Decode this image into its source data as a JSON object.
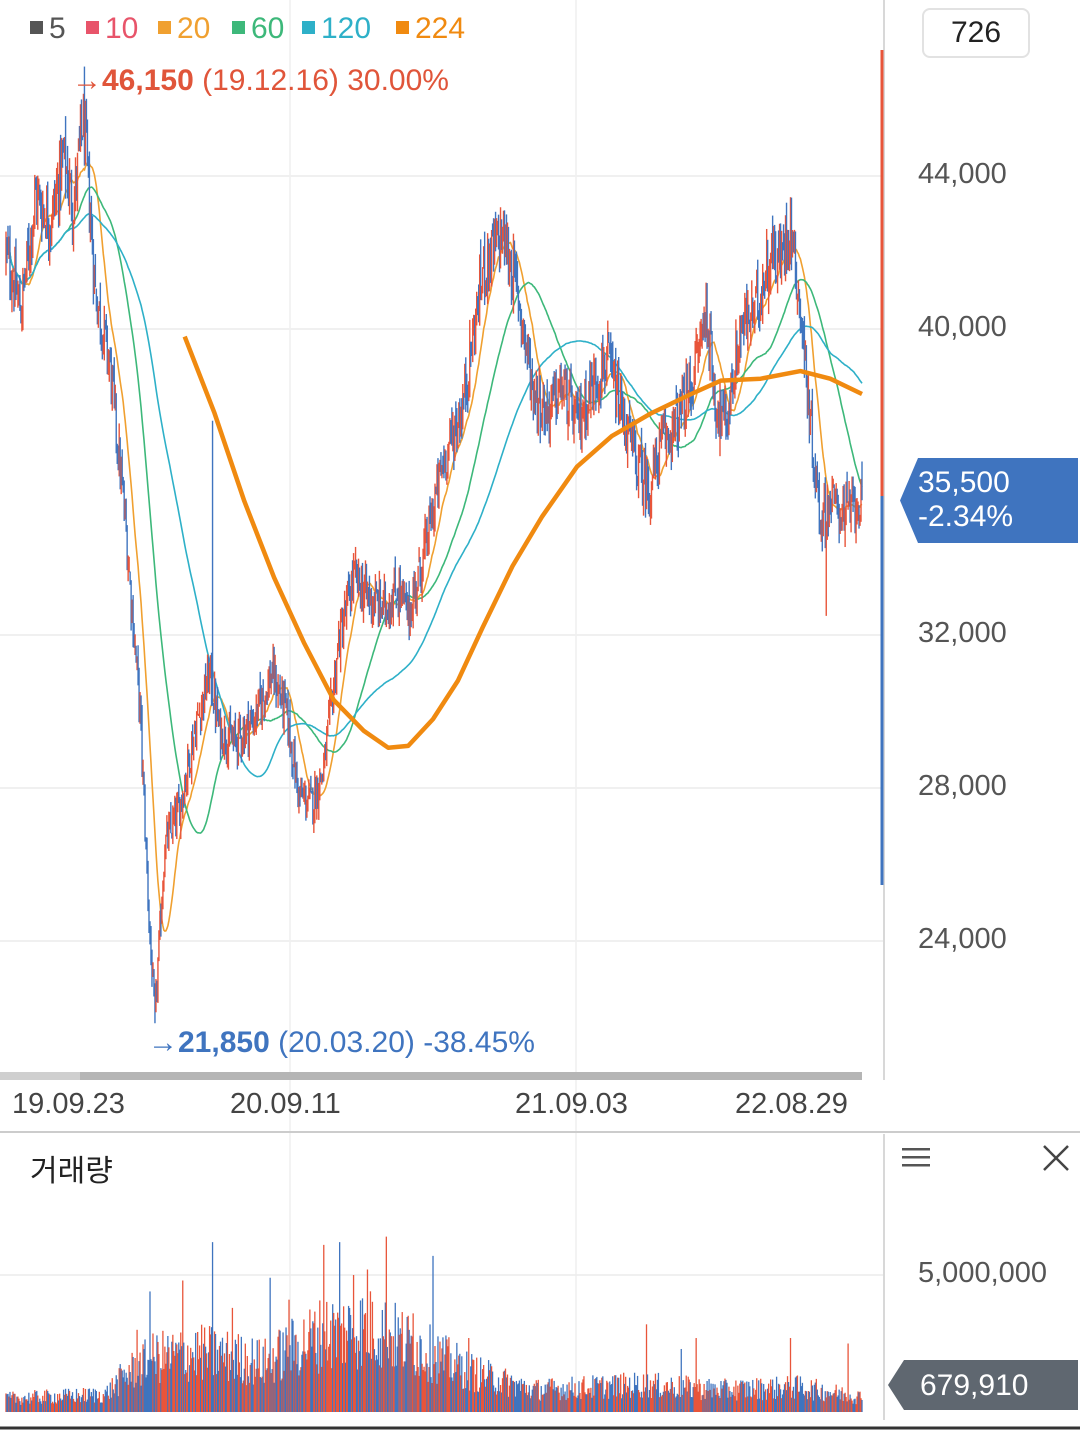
{
  "chart_data": [
    {
      "type": "candlestick",
      "legend": [
        {
          "name": "5",
          "color": "#555555"
        },
        {
          "name": "10",
          "color": "#e8546a"
        },
        {
          "name": "20",
          "color": "#f0a030"
        },
        {
          "name": "60",
          "color": "#3db87a"
        },
        {
          "name": "120",
          "color": "#2eb0c8"
        },
        {
          "name": "224",
          "color": "#f08a10"
        }
      ],
      "y_ticks": [
        "44,000",
        "40,000",
        "32,000",
        "28,000",
        "24,000"
      ],
      "y_tick_values": [
        44000,
        40000,
        32000,
        28000,
        24000
      ],
      "ylim": [
        20200,
        46150
      ],
      "x_ticks": [
        "19.09.23",
        "20.09.11",
        "21.09.03",
        "22.08.29"
      ],
      "counter": "726",
      "high_annotation": {
        "arrow": "→",
        "value": "46,150",
        "date": "(19.12.16)",
        "pct": "30.00%"
      },
      "low_annotation": {
        "arrow": "→",
        "value": "21,850",
        "date": "(20.03.20)",
        "pct": "-38.45%"
      },
      "current_price": "35,500",
      "current_change": "-2.34%",
      "up_color": "#e8553a",
      "down_color": "#3f74bf",
      "price_path": [
        {
          "i": 0,
          "v": 42000
        },
        {
          "i": 15,
          "v": 40500
        },
        {
          "i": 30,
          "v": 43500
        },
        {
          "i": 45,
          "v": 42800
        },
        {
          "i": 58,
          "v": 44500
        },
        {
          "i": 68,
          "v": 43200
        },
        {
          "i": 78,
          "v": 45600
        },
        {
          "i": 90,
          "v": 41000
        },
        {
          "i": 105,
          "v": 39000
        },
        {
          "i": 120,
          "v": 35000
        },
        {
          "i": 135,
          "v": 30000
        },
        {
          "i": 145,
          "v": 24000
        },
        {
          "i": 150,
          "v": 22000
        },
        {
          "i": 160,
          "v": 26500
        },
        {
          "i": 175,
          "v": 27500
        },
        {
          "i": 190,
          "v": 29500
        },
        {
          "i": 205,
          "v": 31000
        },
        {
          "i": 215,
          "v": 29500
        },
        {
          "i": 230,
          "v": 29200
        },
        {
          "i": 250,
          "v": 29800
        },
        {
          "i": 268,
          "v": 31000
        },
        {
          "i": 282,
          "v": 30000
        },
        {
          "i": 295,
          "v": 27800
        },
        {
          "i": 308,
          "v": 27600
        },
        {
          "i": 320,
          "v": 28500
        },
        {
          "i": 335,
          "v": 31800
        },
        {
          "i": 350,
          "v": 33500
        },
        {
          "i": 365,
          "v": 33000
        },
        {
          "i": 380,
          "v": 32700
        },
        {
          "i": 395,
          "v": 33200
        },
        {
          "i": 405,
          "v": 32500
        },
        {
          "i": 420,
          "v": 34000
        },
        {
          "i": 440,
          "v": 36500
        },
        {
          "i": 460,
          "v": 38000
        },
        {
          "i": 480,
          "v": 41500
        },
        {
          "i": 500,
          "v": 42500
        },
        {
          "i": 515,
          "v": 41000
        },
        {
          "i": 530,
          "v": 38500
        },
        {
          "i": 545,
          "v": 37800
        },
        {
          "i": 560,
          "v": 38500
        },
        {
          "i": 575,
          "v": 37500
        },
        {
          "i": 590,
          "v": 38500
        },
        {
          "i": 605,
          "v": 39200
        },
        {
          "i": 620,
          "v": 37800
        },
        {
          "i": 635,
          "v": 36500
        },
        {
          "i": 648,
          "v": 35800
        },
        {
          "i": 660,
          "v": 37000
        },
        {
          "i": 675,
          "v": 37500
        },
        {
          "i": 690,
          "v": 38500
        },
        {
          "i": 705,
          "v": 40500
        },
        {
          "i": 715,
          "v": 38000
        },
        {
          "i": 725,
          "v": 37500
        },
        {
          "i": 740,
          "v": 40000
        },
        {
          "i": 755,
          "v": 40500
        },
        {
          "i": 770,
          "v": 42000
        },
        {
          "i": 780,
          "v": 41800
        },
        {
          "i": 790,
          "v": 42800
        },
        {
          "i": 800,
          "v": 40500
        },
        {
          "i": 810,
          "v": 37500
        },
        {
          "i": 820,
          "v": 35000
        },
        {
          "i": 830,
          "v": 35500
        },
        {
          "i": 845,
          "v": 35200
        },
        {
          "i": 858,
          "v": 35500
        }
      ],
      "ma224": [
        {
          "i": 180,
          "v": 39800
        },
        {
          "i": 210,
          "v": 37800
        },
        {
          "i": 240,
          "v": 35500
        },
        {
          "i": 270,
          "v": 33500
        },
        {
          "i": 300,
          "v": 31800
        },
        {
          "i": 330,
          "v": 30300
        },
        {
          "i": 360,
          "v": 29500
        },
        {
          "i": 385,
          "v": 29050
        },
        {
          "i": 405,
          "v": 29100
        },
        {
          "i": 430,
          "v": 29800
        },
        {
          "i": 455,
          "v": 30800
        },
        {
          "i": 480,
          "v": 32200
        },
        {
          "i": 510,
          "v": 33800
        },
        {
          "i": 540,
          "v": 35100
        },
        {
          "i": 575,
          "v": 36400
        },
        {
          "i": 610,
          "v": 37200
        },
        {
          "i": 650,
          "v": 37800
        },
        {
          "i": 690,
          "v": 38300
        },
        {
          "i": 720,
          "v": 38650
        },
        {
          "i": 760,
          "v": 38700
        },
        {
          "i": 800,
          "v": 38900
        },
        {
          "i": 830,
          "v": 38700
        },
        {
          "i": 862,
          "v": 38300
        }
      ]
    },
    {
      "type": "bar",
      "title": "거래량",
      "y_ticks": [
        "5,000,000"
      ],
      "y_tick_values": [
        5000000
      ],
      "ylim": [
        0,
        7500000
      ],
      "current_volume": "679,910",
      "volume_profile": [
        {
          "i": 0,
          "v": 550000
        },
        {
          "i": 100,
          "v": 700000
        },
        {
          "i": 120,
          "v": 1500000
        },
        {
          "i": 150,
          "v": 2200000
        },
        {
          "i": 200,
          "v": 2400000
        },
        {
          "i": 260,
          "v": 2000000
        },
        {
          "i": 320,
          "v": 3200000
        },
        {
          "i": 370,
          "v": 3400000
        },
        {
          "i": 420,
          "v": 2500000
        },
        {
          "i": 470,
          "v": 1600000
        },
        {
          "i": 530,
          "v": 900000
        },
        {
          "i": 640,
          "v": 1100000
        },
        {
          "i": 720,
          "v": 900000
        },
        {
          "i": 800,
          "v": 1000000
        },
        {
          "i": 862,
          "v": 600000
        }
      ],
      "volume_spikes": [
        {
          "i": 132,
          "v": 3000000
        },
        {
          "i": 145,
          "v": 4400000
        },
        {
          "i": 178,
          "v": 4800000
        },
        {
          "i": 208,
          "v": 6200000
        },
        {
          "i": 228,
          "v": 3800000
        },
        {
          "i": 266,
          "v": 4900000
        },
        {
          "i": 285,
          "v": 4100000
        },
        {
          "i": 320,
          "v": 6100000
        },
        {
          "i": 336,
          "v": 6200000
        },
        {
          "i": 350,
          "v": 5000000
        },
        {
          "i": 364,
          "v": 5200000
        },
        {
          "i": 383,
          "v": 6400000
        },
        {
          "i": 410,
          "v": 3600000
        },
        {
          "i": 430,
          "v": 5700000
        },
        {
          "i": 466,
          "v": 2700000
        },
        {
          "i": 645,
          "v": 3200000
        },
        {
          "i": 680,
          "v": 2300000
        },
        {
          "i": 695,
          "v": 2700000
        },
        {
          "i": 790,
          "v": 2700000
        },
        {
          "i": 848,
          "v": 2500000
        }
      ]
    }
  ]
}
